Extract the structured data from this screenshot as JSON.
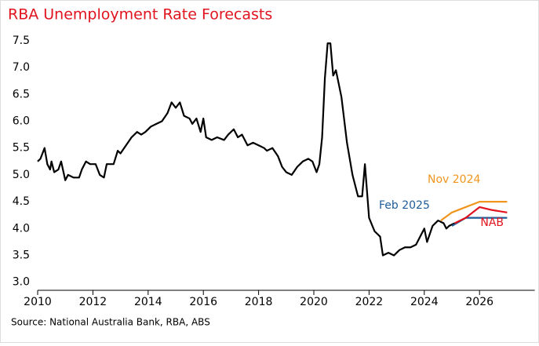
{
  "chart_data": {
    "type": "line",
    "title": "RBA Unemployment Rate Forecasts",
    "source": "Source: National Australia Bank, RBA, ABS",
    "xlim": [
      2010,
      2028
    ],
    "xticks": [
      2010,
      2012,
      2014,
      2016,
      2018,
      2020,
      2022,
      2024,
      2026
    ],
    "ylim": [
      2.85,
      7.6
    ],
    "yticks": [
      {
        "value": 3,
        "label": "3.0"
      },
      3.5,
      {
        "value": 4,
        "label": "4.0"
      },
      4.5,
      {
        "value": 5,
        "label": "5.0"
      },
      5.5,
      {
        "value": 6,
        "label": "6.0"
      },
      6.5,
      {
        "value": 7,
        "label": "7.0"
      },
      7.5
    ],
    "series": [
      {
        "color": "#000000",
        "x": [
          2010.0,
          2010.1,
          2010.25,
          2010.35,
          2010.45,
          2010.5,
          2010.6,
          2010.75,
          2010.85,
          2011.0,
          2011.1,
          2011.3,
          2011.5,
          2011.6,
          2011.75,
          2011.9,
          2012.1,
          2012.25,
          2012.4,
          2012.5,
          2012.75,
          2012.9,
          2013.0,
          2013.2,
          2013.4,
          2013.6,
          2013.75,
          2013.9,
          2014.1,
          2014.3,
          2014.5,
          2014.7,
          2014.85,
          2015.0,
          2015.15,
          2015.3,
          2015.5,
          2015.6,
          2015.75,
          2015.9,
          2016.0,
          2016.1,
          2016.3,
          2016.5,
          2016.75,
          2016.9,
          2017.1,
          2017.25,
          2017.4,
          2017.6,
          2017.8,
          2018.0,
          2018.2,
          2018.3,
          2018.5,
          2018.7,
          2018.85,
          2019.0,
          2019.2,
          2019.4,
          2019.6,
          2019.8,
          2019.95,
          2020.1,
          2020.2,
          2020.3,
          2020.4,
          2020.5,
          2020.6,
          2020.7,
          2020.8,
          2021.0,
          2021.2,
          2021.4,
          2021.6,
          2021.75,
          2021.85,
          2022.0,
          2022.2,
          2022.4,
          2022.5,
          2022.7,
          2022.9,
          2023.1,
          2023.3,
          2023.5,
          2023.7,
          2023.9,
          2024.0,
          2024.1,
          2024.3,
          2024.5,
          2024.7,
          2024.8,
          2024.9,
          2025.1
        ],
        "values": [
          5.25,
          5.3,
          5.5,
          5.2,
          5.1,
          5.25,
          5.05,
          5.1,
          5.25,
          4.9,
          5.0,
          4.95,
          4.95,
          5.1,
          5.25,
          5.2,
          5.2,
          5.0,
          4.95,
          5.2,
          5.2,
          5.45,
          5.4,
          5.55,
          5.7,
          5.8,
          5.75,
          5.8,
          5.9,
          5.95,
          6.0,
          6.15,
          6.35,
          6.25,
          6.35,
          6.1,
          6.05,
          5.95,
          6.05,
          5.8,
          6.05,
          5.7,
          5.65,
          5.7,
          5.65,
          5.75,
          5.85,
          5.7,
          5.75,
          5.55,
          5.6,
          5.55,
          5.5,
          5.45,
          5.5,
          5.35,
          5.15,
          5.05,
          5.0,
          5.15,
          5.25,
          5.3,
          5.25,
          5.05,
          5.2,
          5.7,
          6.8,
          7.45,
          7.45,
          6.85,
          6.95,
          6.45,
          5.6,
          5.0,
          4.6,
          4.6,
          5.2,
          4.2,
          3.95,
          3.85,
          3.5,
          3.55,
          3.5,
          3.6,
          3.65,
          3.65,
          3.7,
          3.9,
          4.0,
          3.75,
          4.05,
          4.15,
          4.1,
          4.0,
          4.05,
          4.1
        ]
      },
      {
        "name": "Nov 2024",
        "color": "#f0961e",
        "x": [
          2024.6,
          2025.0,
          2025.5,
          2026.0,
          2027.0
        ],
        "values": [
          4.15,
          4.3,
          4.4,
          4.5,
          4.5
        ]
      },
      {
        "name": "Feb 2025",
        "color": "#1f5c99",
        "x": [
          2025.0,
          2025.5,
          2027.0
        ],
        "values": [
          4.05,
          4.2,
          4.2
        ]
      },
      {
        "name": "NAB",
        "color": "#e0141e",
        "x": [
          2025.1,
          2025.5,
          2026.0,
          2026.4,
          2027.0
        ],
        "values": [
          4.1,
          4.2,
          4.4,
          4.35,
          4.3
        ]
      }
    ]
  }
}
